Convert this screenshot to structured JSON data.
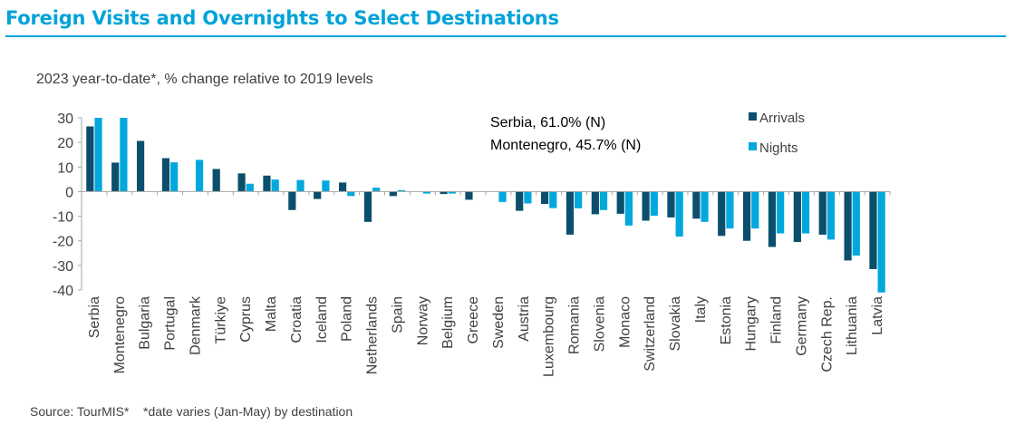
{
  "title": "Foreign Visits and Overnights to Select Destinations",
  "subtitle": "2023 year-to-date*, % change relative to 2019 levels",
  "source": "Source: TourMIS*    *date varies (Jan-May) by destination",
  "annotations": [
    "Serbia, 61.0% (N)",
    "Montenegro, 45.7% (N)"
  ],
  "colors": {
    "title": "#00a3d9",
    "arrivals": "#0b4f6c",
    "nights": "#00a8dd",
    "axis": "#a6a6a6",
    "text": "#404040"
  },
  "chart_data": {
    "type": "bar",
    "title": "Foreign Visits and Overnights to Select Destinations",
    "subtitle": "2023 year-to-date*, % change relative to 2019 levels",
    "ylim": [
      -40,
      30
    ],
    "yticks": [
      30,
      20,
      10,
      0,
      -10,
      -20,
      -30,
      -40
    ],
    "grid": false,
    "legend": "top-right",
    "categories": [
      "Serbia",
      "Montenegro",
      "Bulgaria",
      "Portugal",
      "Denmark",
      "Türkiye",
      "Cyprus",
      "Malta",
      "Croatia",
      "Iceland",
      "Poland",
      "Netherlands",
      "Spain",
      "Norway",
      "Belgium",
      "Greece",
      "Sweden",
      "Austria",
      "Luxembourg",
      "Romania",
      "Slovenia",
      "Monaco",
      "Switzerland",
      "Slovakia",
      "Italy",
      "Estonia",
      "Hungary",
      "Finland",
      "Germany",
      "Czech Rep.",
      "Lithuania",
      "Latvia"
    ],
    "series": [
      {
        "name": "Arrivals",
        "values": [
          26.5,
          11.8,
          20.6,
          13.6,
          null,
          9.2,
          7.4,
          6.5,
          -7.5,
          -3,
          3.7,
          -12.3,
          -1.8,
          null,
          -1,
          -3.3,
          null,
          -7.8,
          -5,
          -17.5,
          -9.2,
          -9,
          -11.8,
          -10.5,
          -11,
          -18,
          -20,
          -22.5,
          -20.5,
          -17.5,
          -28,
          -31.5
        ]
      },
      {
        "name": "Nights",
        "values": [
          30,
          30,
          0,
          11.9,
          12.9,
          0,
          3.2,
          4.9,
          4.7,
          4.5,
          -1.8,
          1.6,
          0.6,
          -0.8,
          -0.8,
          null,
          -4.2,
          -4.8,
          -6.7,
          -6.8,
          -7.5,
          -13.8,
          -9.8,
          -18.3,
          -12.3,
          -15,
          -15,
          -17,
          -17,
          -19.5,
          -26,
          -41
        ]
      }
    ]
  }
}
